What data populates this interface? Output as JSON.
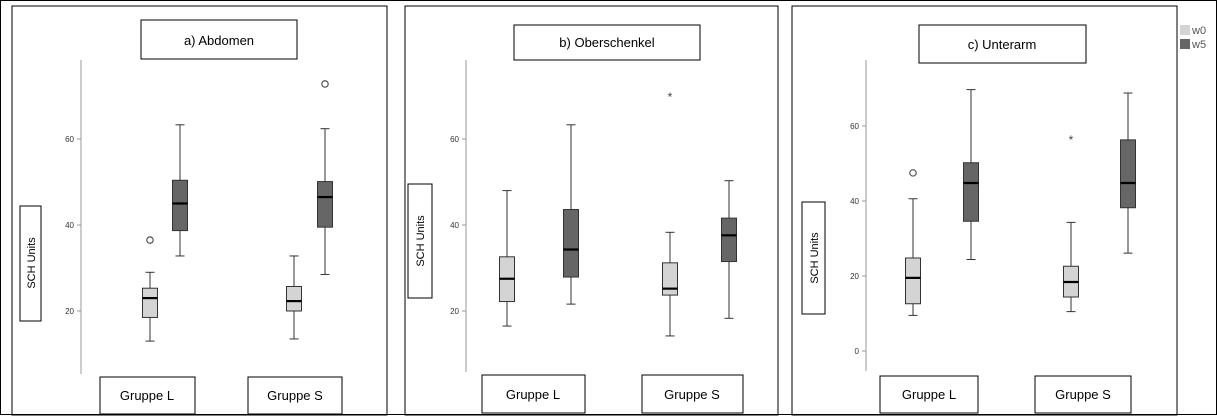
{
  "chart_data": {
    "type": "box",
    "legend": {
      "placement": "top-right",
      "items": [
        {
          "label": "w0",
          "color": "#d4d4d4"
        },
        {
          "label": "w5",
          "color": "#666666"
        }
      ]
    },
    "panels": [
      {
        "title": "a) Abdomen",
        "ylabel": "SCH Units",
        "yticks": [
          20,
          40,
          60
        ],
        "ylim": [
          9,
          79
        ],
        "categories": [
          "Gruppe L",
          "Gruppe S"
        ],
        "series": [
          {
            "name": "w0",
            "boxes": [
              {
                "min": 13,
                "q1": 18.5,
                "median": 23,
                "q3": 25.3,
                "max": 29,
                "outliers": [
                  {
                    "value": 36.5,
                    "marker": "circle"
                  }
                ]
              },
              {
                "min": 13.5,
                "q1": 20,
                "median": 22.3,
                "q3": 25.7,
                "max": 32.8,
                "outliers": []
              }
            ]
          },
          {
            "name": "w5",
            "boxes": [
              {
                "min": 32.8,
                "q1": 38.7,
                "median": 45,
                "q3": 50.4,
                "max": 63.3,
                "outliers": []
              },
              {
                "min": 28.5,
                "q1": 39.5,
                "median": 46.5,
                "q3": 50.1,
                "max": 62.4,
                "outliers": [
                  {
                    "value": 72.8,
                    "marker": "circle"
                  }
                ]
              }
            ]
          }
        ]
      },
      {
        "title": "b) Oberschenkel",
        "ylabel": "SCH Units",
        "yticks": [
          20,
          40,
          60
        ],
        "ylim": [
          11,
          80
        ],
        "categories": [
          "Gruppe L",
          "Gruppe S"
        ],
        "series": [
          {
            "name": "w0",
            "boxes": [
              {
                "min": 16.5,
                "q1": 22.2,
                "median": 27.5,
                "q3": 32.6,
                "max": 48,
                "outliers": []
              },
              {
                "min": 14.2,
                "q1": 23.7,
                "median": 25.2,
                "q3": 31.2,
                "max": 38.3,
                "outliers": [
                  {
                    "value": 70,
                    "marker": "star"
                  }
                ]
              }
            ]
          },
          {
            "name": "w5",
            "boxes": [
              {
                "min": 21.6,
                "q1": 27.9,
                "median": 34.3,
                "q3": 43.6,
                "max": 63.3,
                "outliers": []
              },
              {
                "min": 18.3,
                "q1": 31.5,
                "median": 37.6,
                "q3": 41.6,
                "max": 50.3,
                "outliers": []
              }
            ]
          }
        ]
      },
      {
        "title": "c) Unterarm",
        "ylabel": "SCH Units",
        "yticks": [
          0,
          20,
          40,
          60
        ],
        "ylim": [
          -4,
          78
        ],
        "categories": [
          "Gruppe L",
          "Gruppe S"
        ],
        "series": [
          {
            "name": "w0",
            "boxes": [
              {
                "min": 9.5,
                "q1": 12.6,
                "median": 19.5,
                "q3": 24.8,
                "max": 40.6,
                "outliers": [
                  {
                    "value": 47.5,
                    "marker": "circle"
                  }
                ]
              },
              {
                "min": 10.5,
                "q1": 14.4,
                "median": 18.4,
                "q3": 22.6,
                "max": 34.3,
                "outliers": [
                  {
                    "value": 56.6,
                    "marker": "star"
                  }
                ]
              }
            ]
          },
          {
            "name": "w5",
            "boxes": [
              {
                "min": 24.4,
                "q1": 34.6,
                "median": 44.8,
                "q3": 50.2,
                "max": 69.7,
                "outliers": []
              },
              {
                "min": 26.1,
                "q1": 38.2,
                "median": 44.8,
                "q3": 56.3,
                "max": 68.8,
                "outliers": []
              }
            ]
          }
        ]
      }
    ]
  }
}
